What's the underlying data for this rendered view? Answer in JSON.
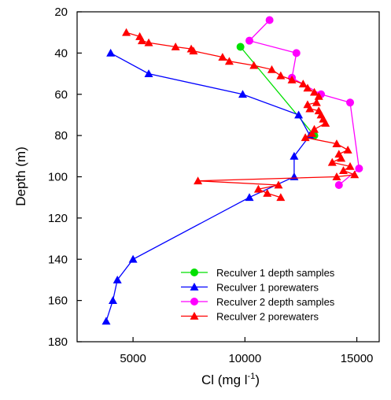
{
  "chart_data": {
    "type": "scatter",
    "xlabel": "Cl (mg l",
    "xlabel_sup": "-1",
    "xlabel_tail": ")",
    "ylabel": "Depth (m)",
    "xlim": [
      2500,
      16000
    ],
    "ylim": [
      20,
      180
    ],
    "y_inverted": true,
    "x_ticks": [
      5000,
      10000,
      15000
    ],
    "x_tick_labels": [
      "5000",
      "10000",
      "15000"
    ],
    "y_ticks": [
      20,
      40,
      60,
      80,
      100,
      120,
      140,
      160,
      180
    ],
    "y_tick_labels": [
      "20",
      "40",
      "60",
      "80",
      "100",
      "120",
      "140",
      "160",
      "180"
    ],
    "grid": false,
    "legend_position": "bottom-right",
    "series": [
      {
        "name": "Reculver 1 depth samples",
        "color": "#00e000",
        "marker": "circle",
        "points": [
          [
            9800,
            37
          ],
          [
            13100,
            80
          ]
        ]
      },
      {
        "name": "Reculver 1 porewaters",
        "color": "#0000ff",
        "marker": "triangle",
        "points": [
          [
            4000,
            40
          ],
          [
            5700,
            50
          ],
          [
            9900,
            60
          ],
          [
            12400,
            70
          ],
          [
            12900,
            80
          ],
          [
            12200,
            90
          ],
          [
            12200,
            100
          ],
          [
            10200,
            110
          ],
          [
            5000,
            140
          ],
          [
            4300,
            150
          ],
          [
            4100,
            160
          ],
          [
            3800,
            170
          ]
        ]
      },
      {
        "name": "Reculver 2 depth samples",
        "color": "#ff00ff",
        "marker": "circle",
        "points": [
          [
            11100,
            24
          ],
          [
            10200,
            34
          ],
          [
            12300,
            40
          ],
          [
            12100,
            52
          ],
          [
            13400,
            60
          ],
          [
            14700,
            64
          ],
          [
            15100,
            96
          ],
          [
            14200,
            104
          ]
        ]
      },
      {
        "name": "Reculver 2 porewaters",
        "color": "#ff0000",
        "marker": "triangle",
        "points": [
          [
            4700,
            30
          ],
          [
            5300,
            32
          ],
          [
            5400,
            34
          ],
          [
            5700,
            35
          ],
          [
            6900,
            37
          ],
          [
            7600,
            38
          ],
          [
            7700,
            39
          ],
          [
            9000,
            42
          ],
          [
            9300,
            44
          ],
          [
            10400,
            46
          ],
          [
            11200,
            48
          ],
          [
            11600,
            51
          ],
          [
            12100,
            53
          ],
          [
            12600,
            55
          ],
          [
            12800,
            57
          ],
          [
            13100,
            59
          ],
          [
            13300,
            61
          ],
          [
            13200,
            64
          ],
          [
            12800,
            65
          ],
          [
            12900,
            67
          ],
          [
            13300,
            68
          ],
          [
            13400,
            70
          ],
          [
            13500,
            72
          ],
          [
            13600,
            74
          ],
          [
            13100,
            77
          ],
          [
            13000,
            79
          ],
          [
            12700,
            81
          ],
          [
            14100,
            84
          ],
          [
            14600,
            87
          ],
          [
            14200,
            89
          ],
          [
            14300,
            91
          ],
          [
            13900,
            93
          ],
          [
            14700,
            95
          ],
          [
            14400,
            97
          ],
          [
            14900,
            99
          ],
          [
            14100,
            100
          ],
          [
            7900,
            102
          ],
          [
            11500,
            104
          ],
          [
            10600,
            106
          ],
          [
            11000,
            108
          ],
          [
            11600,
            110
          ]
        ]
      }
    ]
  }
}
